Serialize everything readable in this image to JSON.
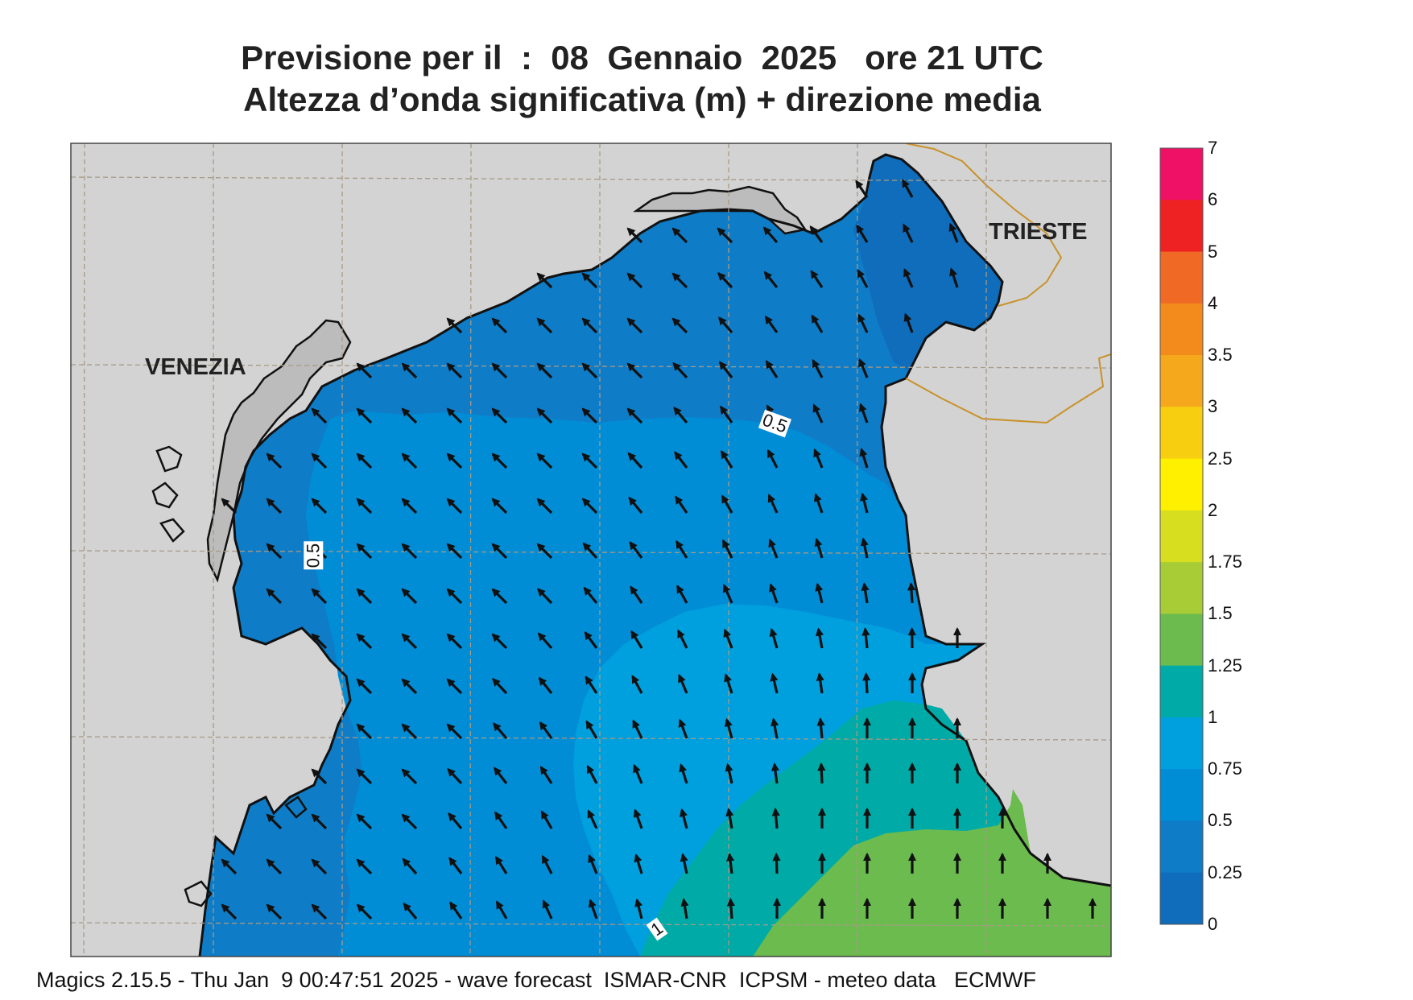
{
  "title": {
    "line1": "Previsione per il  :  08  Gennaio  2025   ore 21 UTC",
    "line2": "Altezza d’onda significativa (m) + direzione media"
  },
  "cities": [
    {
      "name": "VENEZIA"
    },
    {
      "name": "TRIESTE"
    }
  ],
  "contour_labels": [
    "0.5",
    "0.5",
    "1"
  ],
  "colorbar": {
    "levels": [
      "7",
      "6",
      "5",
      "4",
      "3.5",
      "3",
      "2.5",
      "2",
      "1.75",
      "1.5",
      "1.25",
      "1",
      "0.75",
      "0.5",
      "0.25",
      "0"
    ],
    "colors": [
      "#ee1166",
      "#ee2222",
      "#f06a25",
      "#f28a1c",
      "#f5a81c",
      "#f8cf10",
      "#fff000",
      "#d7de20",
      "#a8cc36",
      "#6cbb4f",
      "#00aaa6",
      "#009fdd",
      "#008dd6",
      "#0f7cc7",
      "#0f6dbb"
    ]
  },
  "map_colors": {
    "land": "#d3d3d3",
    "lagoon": "#bcbcbc",
    "sea_025_05": "#0f7cc7",
    "sea_0_025": "#0f6dbb",
    "sea_05_075": "#008dd6",
    "sea_075_1": "#009fdd",
    "sea_1_125": "#00aaa6",
    "sea_125_15": "#6cbb4f",
    "coast": "#111111",
    "border": "#c8922a",
    "grid": "#a89a86"
  },
  "footer": "Magics 2.15.5 - Thu Jan  9 00:47:51 2025 - wave forecast  ISMAR-CNR  ICPSM - meteo data   ECMWF"
}
